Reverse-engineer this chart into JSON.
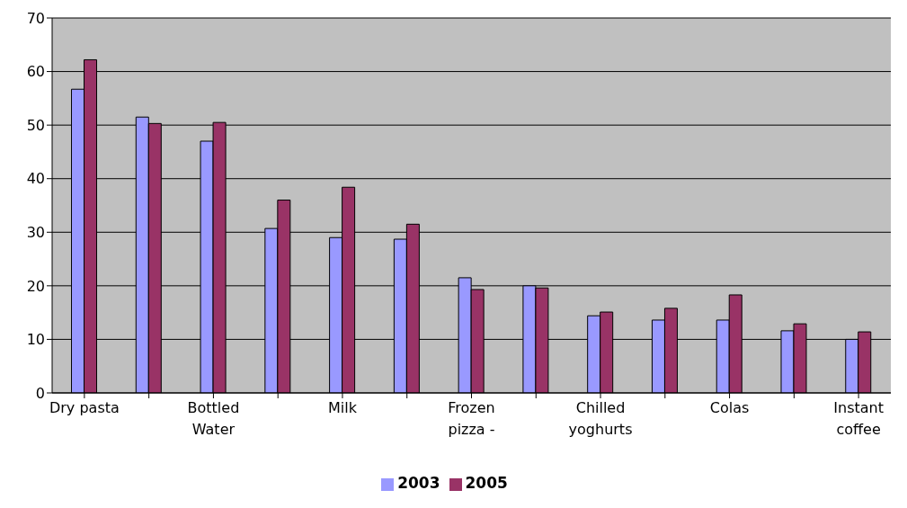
{
  "chart_data": {
    "type": "bar",
    "categories": [
      "Dry pasta",
      null,
      "Bottled Water",
      null,
      "Milk",
      null,
      "Frozen pizza -",
      null,
      "Chilled yoghurts",
      null,
      "Colas",
      null,
      "Instant coffee"
    ],
    "series": [
      {
        "name": "2003",
        "color": "#9999ff",
        "values": [
          56.7,
          51.5,
          47,
          30.7,
          29,
          28.7,
          21.5,
          20,
          14.4,
          13.6,
          13.6,
          11.6,
          10
        ]
      },
      {
        "name": "2005",
        "color": "#993366",
        "values": [
          62.2,
          50.3,
          50.5,
          36,
          38.4,
          31.5,
          19.3,
          19.6,
          15.1,
          15.8,
          18.3,
          12.9,
          11.4
        ]
      }
    ],
    "ylim": [
      0,
      70
    ],
    "yticks": [
      0,
      10,
      20,
      30,
      40,
      50,
      60,
      70
    ],
    "grid": "y",
    "legend": "bottom"
  }
}
